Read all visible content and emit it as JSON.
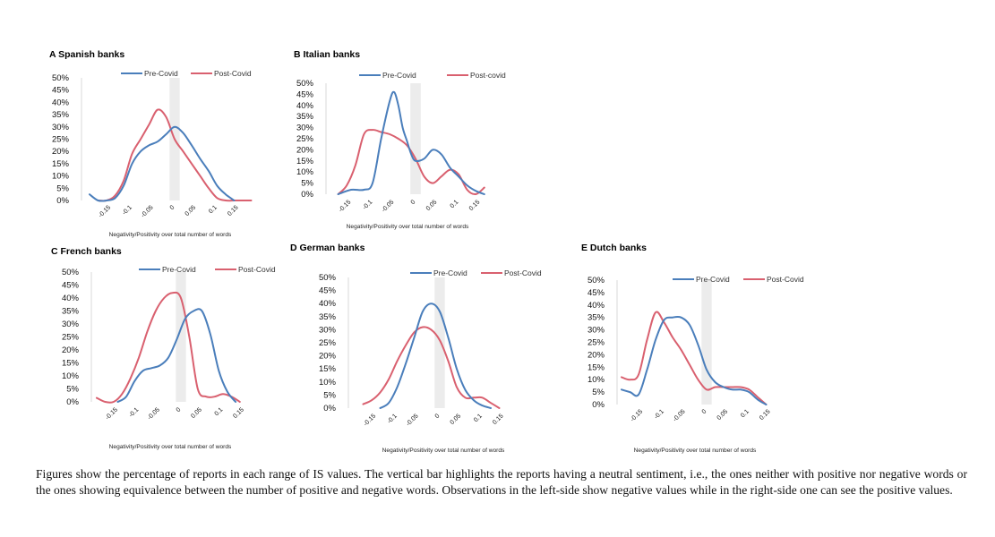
{
  "colors": {
    "pre": "#4a7ebb",
    "post": "#d9606f",
    "neutral_band": "#ececec"
  },
  "chart_data": [
    {
      "type": "line",
      "id": "a",
      "title": "A Spanish banks",
      "xlabel": "Negativity/Positivity over total number of words",
      "yticks": [
        "50%",
        "45%",
        "40%",
        "35%",
        "30%",
        "25%",
        "20%",
        "15%",
        "10%",
        "5%",
        "0%"
      ],
      "ylim": [
        0,
        50
      ],
      "xticks": [
        "-0.15",
        "-0.1",
        "-0.05",
        "0",
        "0.05",
        "0.1",
        "0.15"
      ],
      "xlim": [
        -0.2,
        0.2
      ],
      "neutral_band": [
        -0.012,
        0.012
      ],
      "series": [
        {
          "name": "Pre-Covid",
          "x": [
            -0.2,
            -0.18,
            -0.16,
            -0.14,
            -0.12,
            -0.1,
            -0.08,
            -0.06,
            -0.04,
            -0.02,
            0,
            0.02,
            0.04,
            0.06,
            0.08,
            0.1,
            0.12,
            0.14
          ],
          "values": [
            2.5,
            0,
            0,
            1,
            6,
            15,
            20,
            22.5,
            24,
            27,
            30,
            27.5,
            22.5,
            17,
            12,
            6,
            2.5,
            0
          ]
        },
        {
          "name": "Post-Covid",
          "x": [
            -0.18,
            -0.16,
            -0.14,
            -0.12,
            -0.1,
            -0.08,
            -0.06,
            -0.04,
            -0.02,
            0,
            0.02,
            0.04,
            0.06,
            0.08,
            0.1,
            0.12,
            0.14,
            0.16,
            0.18
          ],
          "values": [
            0,
            0,
            2,
            8,
            19,
            25,
            31,
            37,
            34,
            25,
            20,
            15,
            10,
            5,
            1,
            0,
            0,
            0,
            0
          ]
        }
      ]
    },
    {
      "type": "line",
      "id": "b",
      "title": "B Italian banks",
      "xlabel": "Negativity/Positivity over total number of words",
      "yticks": [
        "50%",
        "45%",
        "40%",
        "35%",
        "30%",
        "25%",
        "20%",
        "15%",
        "10%",
        "5%",
        "0%"
      ],
      "ylim": [
        0,
        50
      ],
      "xticks": [
        "-0.15",
        "-0.1",
        "-0.05",
        "0",
        "0.05",
        "0.1",
        "0.15"
      ],
      "xlim": [
        -0.2,
        0.2
      ],
      "neutral_band": [
        -0.012,
        0.012
      ],
      "series": [
        {
          "name": "Pre-Covid",
          "x": [
            -0.18,
            -0.15,
            -0.12,
            -0.1,
            -0.08,
            -0.06,
            -0.05,
            -0.04,
            -0.03,
            -0.02,
            -0.01,
            0,
            0.02,
            0.04,
            0.06,
            0.08,
            0.1,
            0.12,
            0.14,
            0.16
          ],
          "values": [
            0,
            2,
            2,
            5,
            25,
            42,
            46,
            40,
            30,
            24,
            18,
            15,
            16,
            20,
            18,
            12,
            8,
            4,
            1.5,
            0
          ]
        },
        {
          "name": "Post-covid",
          "x": [
            -0.18,
            -0.16,
            -0.14,
            -0.12,
            -0.1,
            -0.08,
            -0.06,
            -0.04,
            -0.02,
            0,
            0.02,
            0.04,
            0.06,
            0.08,
            0.1,
            0.12,
            0.14,
            0.16
          ],
          "values": [
            0,
            4,
            13,
            27,
            29,
            28,
            27,
            25,
            22,
            16,
            8,
            5,
            8,
            11,
            9,
            2,
            0,
            3
          ]
        }
      ]
    },
    {
      "type": "line",
      "id": "c",
      "title": "C French banks",
      "xlabel": "Negativity/Positivity over total number of words",
      "yticks": [
        "50%",
        "45%",
        "40%",
        "35%",
        "30%",
        "25%",
        "20%",
        "15%",
        "10%",
        "5%",
        "0%"
      ],
      "ylim": [
        0,
        50
      ],
      "xticks": [
        "-0.15",
        "-0.1",
        "-0.05",
        "0",
        "0.05",
        "0.1",
        "0.15"
      ],
      "xlim": [
        -0.2,
        0.2
      ],
      "neutral_band": [
        -0.012,
        0.012
      ],
      "series": [
        {
          "name": "Pre-Covid",
          "x": [
            -0.15,
            -0.13,
            -0.11,
            -0.09,
            -0.07,
            -0.05,
            -0.03,
            -0.01,
            0.01,
            0.03,
            0.05,
            0.07,
            0.09,
            0.11,
            0.13
          ],
          "values": [
            0,
            2,
            8,
            12,
            13,
            14,
            17,
            24,
            32,
            35,
            35,
            26,
            12,
            4,
            0
          ]
        },
        {
          "name": "Post-Covid",
          "x": [
            -0.2,
            -0.18,
            -0.16,
            -0.14,
            -0.12,
            -0.1,
            -0.08,
            -0.06,
            -0.04,
            -0.02,
            0,
            0.02,
            0.04,
            0.06,
            0.08,
            0.1,
            0.12,
            0.14
          ],
          "values": [
            1.5,
            0,
            0,
            3,
            9,
            17,
            27,
            35,
            40,
            42,
            40,
            25,
            5,
            2,
            2,
            3,
            2,
            0
          ]
        }
      ]
    },
    {
      "type": "line",
      "id": "d",
      "title": "D German banks",
      "xlabel": "Negativity/Positivity over total number of words",
      "yticks": [
        "50%",
        "45%",
        "40%",
        "35%",
        "30%",
        "25%",
        "20%",
        "15%",
        "10%",
        "5%",
        "0%"
      ],
      "ylim": [
        0,
        50
      ],
      "xticks": [
        "-0.15",
        "-0.1",
        "-0.05",
        "0",
        "0.05",
        "0.1",
        "0.15"
      ],
      "xlim": [
        -0.2,
        0.2
      ],
      "neutral_band": [
        -0.012,
        0.012
      ],
      "series": [
        {
          "name": "Pre-Covid",
          "x": [
            -0.14,
            -0.12,
            -0.1,
            -0.08,
            -0.06,
            -0.04,
            -0.02,
            0,
            0.02,
            0.04,
            0.06,
            0.08,
            0.1,
            0.12
          ],
          "values": [
            0,
            2,
            8,
            17,
            27,
            37,
            40,
            37,
            27,
            15,
            7,
            3,
            1,
            0
          ]
        },
        {
          "name": "Post-Covid",
          "x": [
            -0.18,
            -0.16,
            -0.14,
            -0.12,
            -0.1,
            -0.08,
            -0.06,
            -0.04,
            -0.02,
            0,
            0.02,
            0.04,
            0.06,
            0.08,
            0.1,
            0.12,
            0.14
          ],
          "values": [
            1.5,
            3,
            6,
            11,
            18,
            24,
            29,
            31,
            30,
            26,
            18,
            8,
            4,
            4,
            4,
            2,
            0
          ]
        }
      ]
    },
    {
      "type": "line",
      "id": "e",
      "title": "E Dutch banks",
      "xlabel": "Negativity/Positivity over total number of words",
      "yticks": [
        "50%",
        "45%",
        "40%",
        "35%",
        "30%",
        "25%",
        "20%",
        "15%",
        "10%",
        "5%",
        "0%"
      ],
      "ylim": [
        0,
        50
      ],
      "xticks": [
        "-0.15",
        "-0.1",
        "-0.05",
        "0",
        "0.05",
        "0.1",
        "0.15"
      ],
      "xlim": [
        -0.2,
        0.2
      ],
      "neutral_band": [
        -0.012,
        0.012
      ],
      "series": [
        {
          "name": "Pre-Covid",
          "x": [
            -0.2,
            -0.18,
            -0.16,
            -0.14,
            -0.12,
            -0.1,
            -0.08,
            -0.06,
            -0.04,
            -0.02,
            0,
            0.02,
            0.04,
            0.06,
            0.08,
            0.1,
            0.12,
            0.14
          ],
          "values": [
            6,
            5,
            4,
            14,
            26,
            34,
            35,
            35,
            32,
            24,
            14,
            9,
            7,
            6,
            6,
            5,
            2,
            0
          ]
        },
        {
          "name": "Post-Covid",
          "x": [
            -0.2,
            -0.18,
            -0.16,
            -0.14,
            -0.12,
            -0.1,
            -0.08,
            -0.06,
            -0.04,
            -0.02,
            0,
            0.02,
            0.04,
            0.06,
            0.08,
            0.1,
            0.12,
            0.14
          ],
          "values": [
            11,
            10,
            12,
            26,
            37,
            33,
            27,
            22,
            16,
            10,
            6,
            7,
            7,
            7,
            7,
            6,
            3,
            0
          ]
        }
      ]
    }
  ],
  "caption": "Figures show the percentage of reports in each range of IS values. The vertical bar highlights the reports having a neutral sentiment, i.e., the ones neither with positive nor negative words or the ones showing equivalence between the number of positive and negative words. Observations in the left-side show negative values while in the right-side one can see the positive values."
}
